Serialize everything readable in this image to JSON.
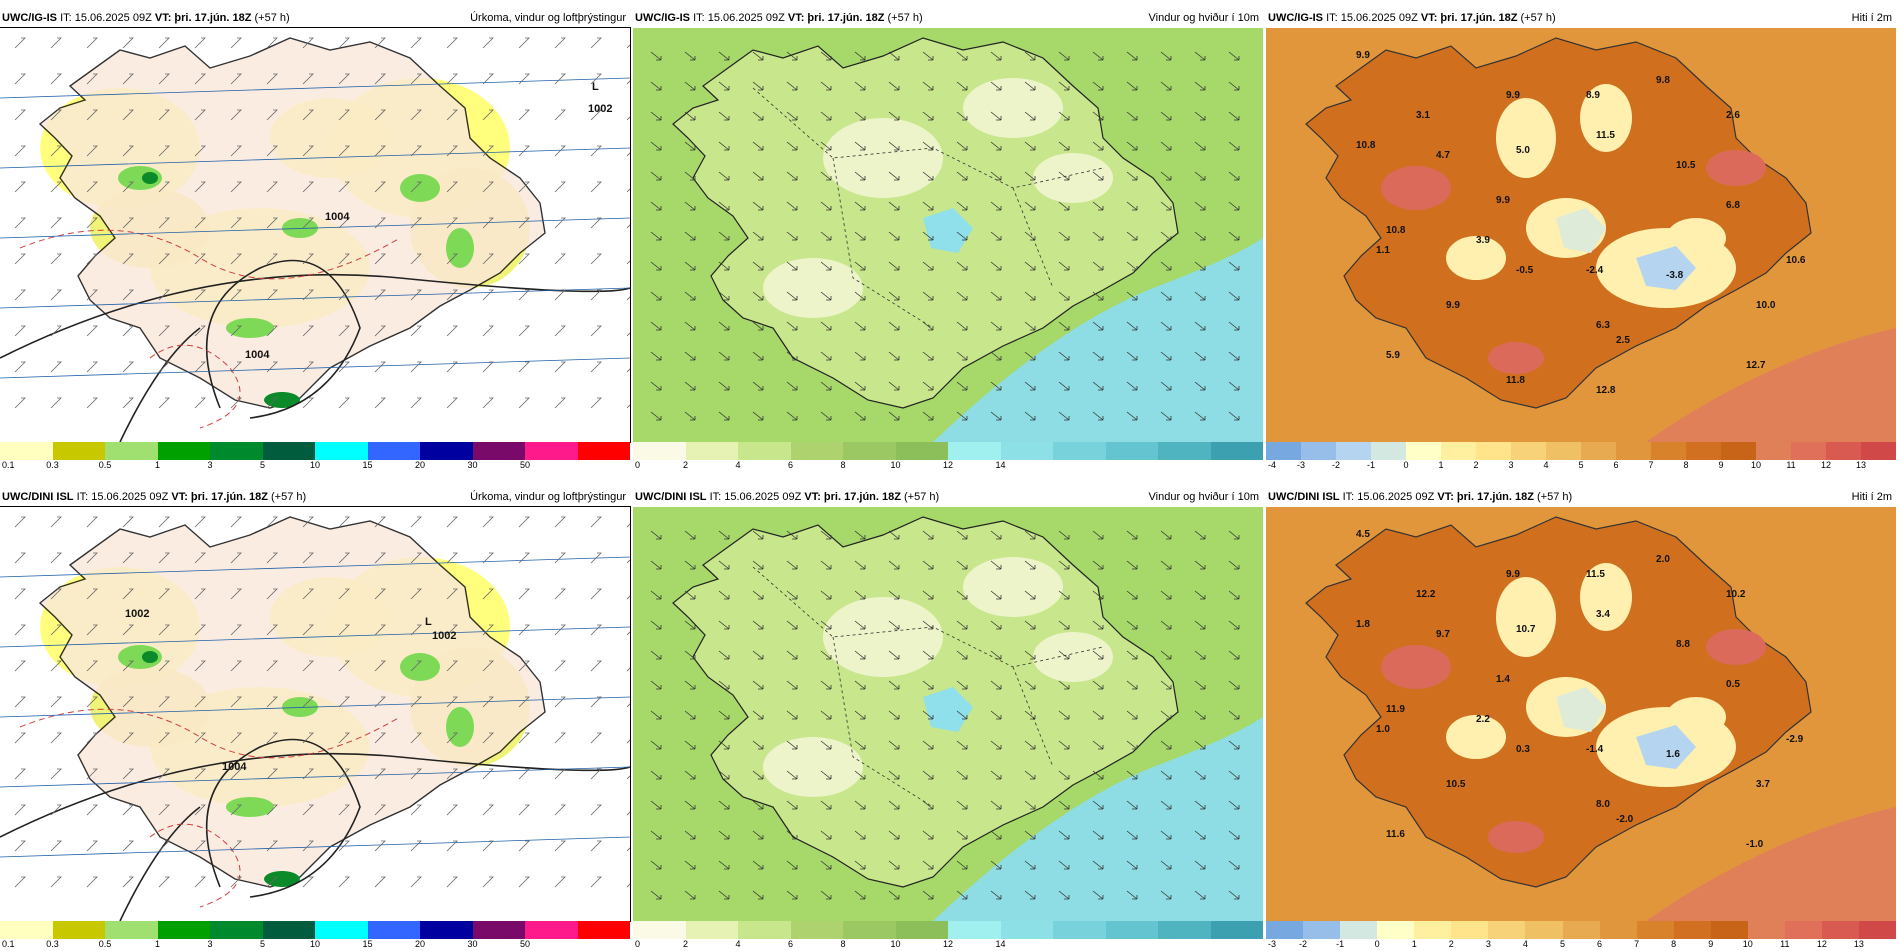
{
  "panels": [
    {
      "id": "r0c0",
      "model": "UWC/IG-IS",
      "it": "IT: 15.06.2025 09Z",
      "vt_label": "VT:",
      "vt_value": "þri. 17.jún. 18Z",
      "lead": "(+57 h)",
      "title": "Úrkoma, vindur og loftþrýstingur",
      "kind": "precip",
      "pressure_labels": [
        "L",
        "1002",
        "1004",
        "1004"
      ],
      "legend_ticks": [
        "0.1",
        "0.3",
        "0.5",
        "1",
        "3",
        "5",
        "10",
        "15",
        "20",
        "30",
        "50"
      ],
      "legend_colors": [
        "#ffffc0",
        "#c8c800",
        "#a0e070",
        "#00a000",
        "#008a2e",
        "#005c3c",
        "#00ffff",
        "#3366ff",
        "#0000a0",
        "#7a0a6a",
        "#ff1a8c",
        "#ff0000"
      ]
    },
    {
      "id": "r0c1",
      "model": "UWC/IG-IS",
      "it": "IT: 15.06.2025 09Z",
      "vt_label": "VT:",
      "vt_value": "þri. 17.jún. 18Z",
      "lead": "(+57 h)",
      "title": "Vindur og hviður í 10m",
      "kind": "wind",
      "legend_ticks": [
        "0",
        "2",
        "4",
        "6",
        "8",
        "10",
        "12",
        "14"
      ],
      "legend_colors": [
        "#fafae6",
        "#e6f2b4",
        "#c8e68c",
        "#aed26e",
        "#9cc864",
        "#8cbe5a",
        "#a0f0f0",
        "#8ce0e6",
        "#78d2dc",
        "#64c4d0",
        "#50b4c0",
        "#3ca0b0"
      ]
    },
    {
      "id": "r0c2",
      "model": "UWC/IG-IS",
      "it": "IT: 15.06.2025 09Z",
      "vt_label": "VT:",
      "vt_value": "þri. 17.jún. 18Z",
      "lead": "(+57 h)",
      "title": "Hiti í 2m",
      "kind": "temp",
      "values": [
        "9.9",
        "3.1",
        "9.9",
        "8.9",
        "9.8",
        "2.6",
        "10.8",
        "4.7",
        "5.0",
        "11.5",
        "10.5",
        "9.9",
        "10.8",
        "1.1",
        "3.9",
        "6.8",
        "-0.5",
        "-2.4",
        "10.6",
        "-3.8",
        "9.9",
        "10.0",
        "6.3",
        "2.5",
        "5.9",
        "12.7",
        "11.8",
        "12.8"
      ],
      "legend_ticks": [
        "-4",
        "-3",
        "-2",
        "-1",
        "0",
        "1",
        "2",
        "3",
        "4",
        "5",
        "6",
        "7",
        "8",
        "9",
        "10",
        "11",
        "12",
        "13"
      ],
      "legend_colors": [
        "#78a8e0",
        "#96bee8",
        "#b4d4f0",
        "#d2e8e0",
        "#ffffc8",
        "#fff0a0",
        "#ffe48c",
        "#f8d278",
        "#f0c064",
        "#e8aa50",
        "#e0963c",
        "#d8822c",
        "#d07020",
        "#c86418",
        "#e08058",
        "#e0705a",
        "#d85a50",
        "#d04848"
      ]
    },
    {
      "id": "r1c0",
      "model": "UWC/DINI ISL",
      "it": "IT: 15.06.2025 09Z",
      "vt_label": "VT:",
      "vt_value": "þri. 17.jún. 18Z",
      "lead": "(+57 h)",
      "title": "Úrkoma, vindur og loftþrýstingur",
      "kind": "precip",
      "pressure_labels": [
        "1002",
        "L",
        "1002",
        "1004"
      ],
      "legend_ticks": [
        "0.1",
        "0.3",
        "0.5",
        "1",
        "3",
        "5",
        "10",
        "15",
        "20",
        "30",
        "50"
      ],
      "legend_colors": [
        "#ffffc0",
        "#c8c800",
        "#a0e070",
        "#00a000",
        "#008a2e",
        "#005c3c",
        "#00ffff",
        "#3366ff",
        "#0000a0",
        "#7a0a6a",
        "#ff1a8c",
        "#ff0000"
      ]
    },
    {
      "id": "r1c1",
      "model": "UWC/DINI ISL",
      "it": "IT: 15.06.2025 09Z",
      "vt_label": "VT:",
      "vt_value": "þri. 17.jún. 18Z",
      "lead": "(+57 h)",
      "title": "Vindur og hviður í 10m",
      "kind": "wind",
      "legend_ticks": [
        "0",
        "2",
        "4",
        "6",
        "8",
        "10",
        "12",
        "14"
      ],
      "legend_colors": [
        "#fafae6",
        "#e6f2b4",
        "#c8e68c",
        "#aed26e",
        "#9cc864",
        "#8cbe5a",
        "#a0f0f0",
        "#8ce0e6",
        "#78d2dc",
        "#64c4d0",
        "#50b4c0",
        "#3ca0b0"
      ]
    },
    {
      "id": "r1c2",
      "model": "UWC/DINI ISL",
      "it": "IT: 15.06.2025 09Z",
      "vt_label": "VT:",
      "vt_value": "þri. 17.jún. 18Z",
      "lead": "(+57 h)",
      "title": "Hiti í 2m",
      "kind": "temp",
      "values": [
        "4.5",
        "12.2",
        "9.9",
        "11.5",
        "2.0",
        "10.2",
        "1.8",
        "9.7",
        "10.7",
        "3.4",
        "8.8",
        "1.4",
        "11.9",
        "1.0",
        "2.2",
        "0.5",
        "0.3",
        "-1.4",
        "-2.9",
        "1.6",
        "10.5",
        "3.7",
        "8.0",
        "-2.0",
        "11.6",
        "-1.0"
      ],
      "legend_ticks": [
        "-3",
        "-2",
        "-1",
        "0",
        "1",
        "2",
        "3",
        "4",
        "5",
        "6",
        "7",
        "8",
        "9",
        "10",
        "11",
        "12",
        "13"
      ],
      "legend_colors": [
        "#78a8e0",
        "#96bee8",
        "#d2e8e0",
        "#ffffc8",
        "#fff0a0",
        "#ffe48c",
        "#f8d278",
        "#f0c064",
        "#e8aa50",
        "#e0963c",
        "#d8822c",
        "#d07020",
        "#c86418",
        "#e08058",
        "#e0705a",
        "#d85a50",
        "#d04848"
      ]
    }
  ]
}
